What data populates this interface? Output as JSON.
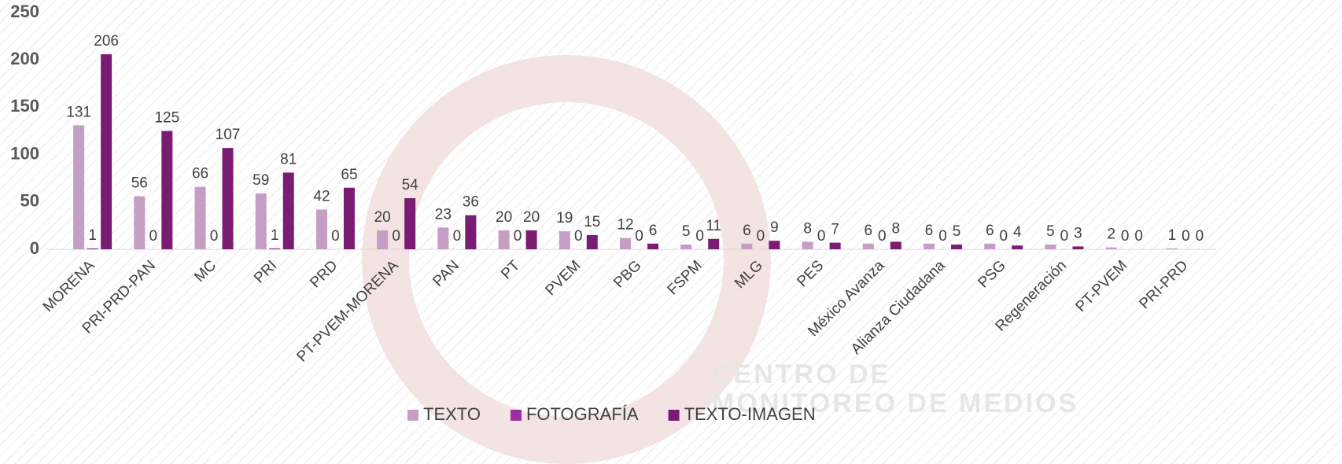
{
  "chart_data": {
    "type": "bar",
    "watermark": [
      "CENTRO DE",
      "MONITOREO DE MEDIOS"
    ],
    "categories": [
      "MORENA",
      "PRI-PRD-PAN",
      "MC",
      "PRI",
      "PRD",
      "PT-PVEM-MORENA",
      "PAN",
      "PT",
      "PVEM",
      "PBG",
      "FSPM",
      "MLG",
      "PES",
      "México Avanza",
      "Alianza Ciudadana",
      "PSG",
      "Regeneración",
      "PT-PVEM",
      "PRI-PRD"
    ],
    "series": [
      {
        "name": "TEXTO",
        "color": "#c49ec4",
        "values": [
          131,
          56,
          66,
          59,
          42,
          20,
          23,
          20,
          19,
          12,
          5,
          6,
          8,
          6,
          6,
          6,
          5,
          2,
          1
        ]
      },
      {
        "name": "FOTOGRAFÍA",
        "color": "#9b2f9f",
        "values": [
          1,
          0,
          0,
          1,
          0,
          0,
          0,
          0,
          0,
          0,
          0,
          0,
          0,
          0,
          0,
          0,
          0,
          0,
          0
        ]
      },
      {
        "name": "TEXTO-IMAGEN",
        "color": "#7a1c72",
        "values": [
          206,
          125,
          107,
          81,
          65,
          54,
          36,
          20,
          15,
          6,
          11,
          9,
          7,
          8,
          5,
          4,
          3,
          0,
          0
        ]
      }
    ],
    "ylim": [
      0,
      250
    ],
    "yticks": [
      0,
      50,
      100,
      150,
      200,
      250
    ],
    "grid": false,
    "legend": "bottom"
  }
}
